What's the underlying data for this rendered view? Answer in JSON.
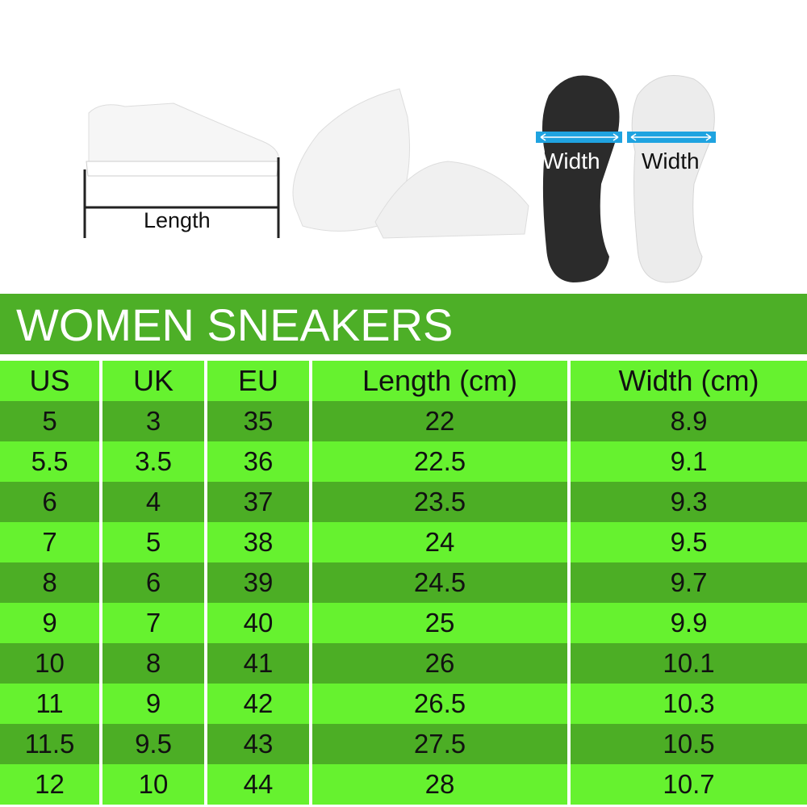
{
  "illustration": {
    "length_label": "Length",
    "width_label_dark": "Width",
    "width_label_light": "Width",
    "arrow_color": "#1fa3e0"
  },
  "title": "WOMEN SNEAKERS",
  "colors": {
    "title_band": "#4daf27",
    "row_dark": "#4cae25",
    "row_bright": "#66f22f"
  },
  "table": {
    "headers": [
      "US",
      "UK",
      "EU",
      "Length (cm)",
      "Width (cm)"
    ],
    "rows": [
      [
        "5",
        "3",
        "35",
        "22",
        "8.9"
      ],
      [
        "5.5",
        "3.5",
        "36",
        "22.5",
        "9.1"
      ],
      [
        "6",
        "4",
        "37",
        "23.5",
        "9.3"
      ],
      [
        "7",
        "5",
        "38",
        "24",
        "9.5"
      ],
      [
        "8",
        "6",
        "39",
        "24.5",
        "9.7"
      ],
      [
        "9",
        "7",
        "40",
        "25",
        "9.9"
      ],
      [
        "10",
        "8",
        "41",
        "26",
        "10.1"
      ],
      [
        "11",
        "9",
        "42",
        "26.5",
        "10.3"
      ],
      [
        "11.5",
        "9.5",
        "43",
        "27.5",
        "10.5"
      ],
      [
        "12",
        "10",
        "44",
        "28",
        "10.7"
      ]
    ]
  }
}
